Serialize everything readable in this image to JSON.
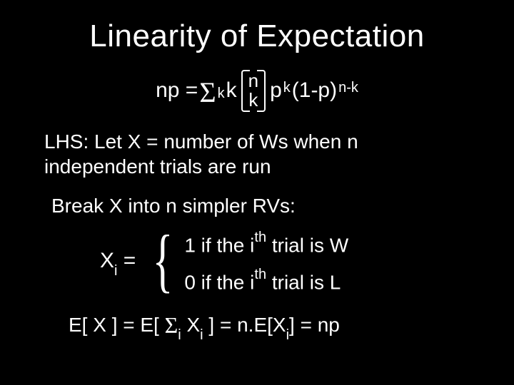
{
  "title": "Linearity of Expectation",
  "formula": {
    "lhs": "np = ",
    "sigma": "Σ",
    "sigma_sub": "k",
    "k": " k ",
    "binom_top": "n",
    "binom_bot": "k",
    "p": " p",
    "p_sup": "k",
    "one_minus_p": "(1-p)",
    "nmk": "n-k"
  },
  "lhs_line1": "LHS: Let X = number of Ws when n",
  "lhs_line2": "independent trials are run",
  "break_line": "Break X into n simpler RVs:",
  "xi_label_x": "X",
  "xi_label_i": "i",
  "xi_eq": " = ",
  "case1_a": "1  if the i",
  "case1_th": "th",
  "case1_b": " trial is W",
  "case2_a": "0  if the i",
  "case2_th": "th",
  "case2_b": " trial is L",
  "final_a": "E[ X ]  = E[ ",
  "final_sigma": "Σ",
  "final_i": "i",
  "final_b": " X",
  "final_b_i": "i",
  "final_c": " ] = n.E[X",
  "final_c_i": "i",
  "final_d": "] = np"
}
